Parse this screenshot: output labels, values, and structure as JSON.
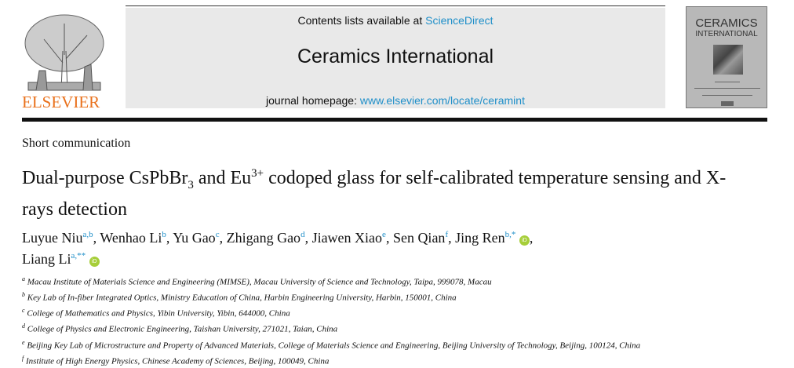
{
  "header": {
    "publisher": "ELSEVIER",
    "contents_prefix": "Contents lists available at ",
    "contents_link": "ScienceDirect",
    "journal": "Ceramics International",
    "homepage_prefix": "journal homepage: ",
    "homepage_link": "www.elsevier.com/locate/ceramint",
    "cover_title1": "CERAMICS",
    "cover_title2": "INTERNATIONAL"
  },
  "article": {
    "type": "Short communication",
    "title_parts": [
      "Dual-purpose CsPbBr",
      "3",
      " and Eu",
      "3+",
      " codoped glass for self-calibrated temperature sensing and X-rays detection"
    ],
    "authors": [
      {
        "name": "Luyue Niu",
        "aff": "a,b"
      },
      {
        "name": "Wenhao Li",
        "aff": "b"
      },
      {
        "name": "Yu Gao",
        "aff": "c"
      },
      {
        "name": "Zhigang Gao",
        "aff": "d"
      },
      {
        "name": "Jiawen Xiao",
        "aff": "e"
      },
      {
        "name": "Sen Qian",
        "aff": "f"
      },
      {
        "name": "Jing Ren",
        "aff": "b,*",
        "orcid": true
      },
      {
        "name": "Liang Li",
        "aff": "a,**",
        "orcid": true
      }
    ],
    "affiliations": [
      {
        "key": "a",
        "text": "Macau Institute of Materials Science and Engineering (MIMSE), Macau University of Science and Technology, Taipa, 999078, Macau"
      },
      {
        "key": "b",
        "text": "Key Lab of In-fiber Integrated Optics, Ministry Education of China, Harbin Engineering University, Harbin, 150001, China"
      },
      {
        "key": "c",
        "text": "College of Mathematics and Physics, Yibin University, Yibin, 644000, China"
      },
      {
        "key": "d",
        "text": "College of Physics and Electronic Engineering, Taishan University, 271021, Taian, China"
      },
      {
        "key": "e",
        "text": "Beijing Key Lab of Microstructure and Property of Advanced Materials, College of Materials Science and Engineering, Beijing University of Technology, Beijing, 100124, China"
      },
      {
        "key": "f",
        "text": "Institute of High Energy Physics, Chinese Academy of Sciences, Beijing, 100049, China"
      }
    ]
  },
  "colors": {
    "link": "#1f8fc9",
    "publisher": "#e9711c",
    "orcid": "#a6ce39"
  }
}
